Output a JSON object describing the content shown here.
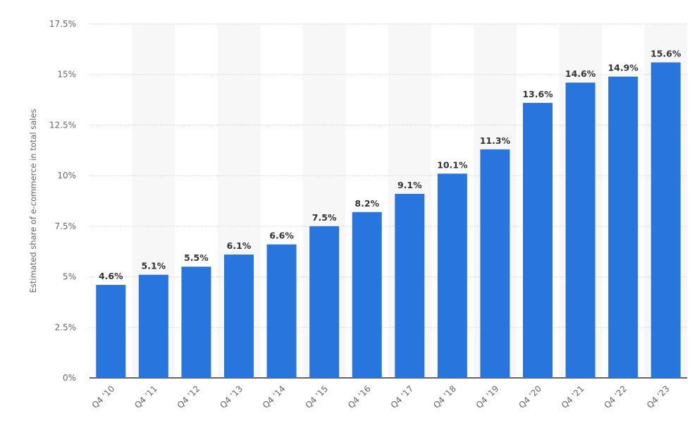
{
  "chart_data": {
    "type": "bar",
    "categories": [
      "Q4 '10",
      "Q4 '11",
      "Q4 '12",
      "Q4 '13",
      "Q4 '14",
      "Q4 '15",
      "Q4 '16",
      "Q4 '17",
      "Q4 '18",
      "Q4 '19",
      "Q4 '20",
      "Q4 '21",
      "Q4 '22",
      "Q4 '23"
    ],
    "values": [
      4.6,
      5.1,
      5.5,
      6.1,
      6.6,
      7.5,
      8.2,
      9.1,
      10.1,
      11.3,
      13.6,
      14.6,
      14.9,
      15.6
    ],
    "data_labels": [
      "4.6%",
      "5.1%",
      "5.5%",
      "6.1%",
      "6.6%",
      "7.5%",
      "8.2%",
      "9.1%",
      "10.1%",
      "11.3%",
      "13.6%",
      "14.6%",
      "14.9%",
      "15.6%"
    ],
    "title": "",
    "xlabel": "",
    "ylabel": "Estimated share of e-commerce in total sales",
    "ylim": [
      0,
      17.5
    ],
    "yticks": [
      0,
      2.5,
      5,
      7.5,
      10,
      12.5,
      15,
      17.5
    ],
    "ytick_labels": [
      "0%",
      "2.5%",
      "5%",
      "7.5%",
      "10%",
      "12.5%",
      "15%",
      "17.5%"
    ],
    "grid": true,
    "legend": "none",
    "colors": {
      "bar": "#2876dd",
      "band": "#f7f7f7",
      "grid": "#cccccc"
    }
  }
}
